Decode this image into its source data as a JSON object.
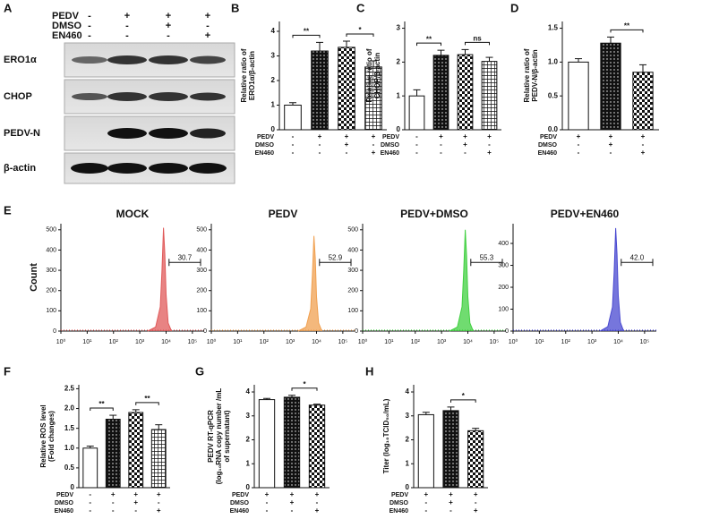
{
  "blot": {
    "panel": "A",
    "conditions": [
      {
        "name": "PEDV",
        "signs": [
          "-",
          "+",
          "+",
          "+"
        ]
      },
      {
        "name": "DMSO",
        "signs": [
          "-",
          "-",
          "+",
          "-"
        ]
      },
      {
        "name": "EN460",
        "signs": [
          "-",
          "-",
          "-",
          "+"
        ]
      }
    ],
    "bands": [
      "ERO1α",
      "CHOP",
      "PEDV-N",
      "β-actin"
    ]
  },
  "flow": {
    "panel": "E",
    "ylabel": "Count"
  },
  "chart_data": [
    {
      "type": "bar",
      "panel": "B",
      "ylabel": [
        "Relative ratio of",
        "ERO1α/β-actin"
      ],
      "values": [
        1.0,
        3.2,
        3.35,
        2.55
      ],
      "errors": [
        0.1,
        0.35,
        0.25,
        0.25
      ],
      "ylim": [
        0,
        4.4
      ],
      "yticks": [
        0,
        1,
        2,
        3,
        4
      ],
      "significance": [
        {
          "label": "**",
          "from": 0,
          "to": 1
        },
        {
          "label": "*",
          "from": 2,
          "to": 3
        }
      ],
      "conditions": [
        {
          "name": "PEDV",
          "signs": [
            "-",
            "+",
            "+",
            "+"
          ]
        },
        {
          "name": "DMSO",
          "signs": [
            "-",
            "-",
            "+",
            "-"
          ]
        },
        {
          "name": "EN460",
          "signs": [
            "-",
            "-",
            "-",
            "+"
          ]
        }
      ]
    },
    {
      "type": "bar",
      "panel": "C",
      "ylabel": [
        "Relative ratio of",
        "CHOP/β-actin"
      ],
      "values": [
        1.0,
        2.2,
        2.22,
        2.02
      ],
      "errors": [
        0.18,
        0.15,
        0.15,
        0.12
      ],
      "ylim": [
        0,
        3.2
      ],
      "yticks": [
        0,
        1,
        2,
        3
      ],
      "significance": [
        {
          "label": "**",
          "from": 0,
          "to": 1
        },
        {
          "label": "ns",
          "from": 2,
          "to": 3
        }
      ],
      "conditions": [
        {
          "name": "PEDV",
          "signs": [
            "-",
            "+",
            "+",
            "+"
          ]
        },
        {
          "name": "DMSO",
          "signs": [
            "-",
            "-",
            "+",
            "-"
          ]
        },
        {
          "name": "EN460",
          "signs": [
            "-",
            "-",
            "-",
            "+"
          ]
        }
      ]
    },
    {
      "type": "bar",
      "panel": "D",
      "ylabel": [
        "Relative ratio of",
        "PEDV-N/β-actin"
      ],
      "values": [
        1.0,
        1.28,
        0.85
      ],
      "errors": [
        0.05,
        0.09,
        0.11
      ],
      "ylim": [
        0,
        1.6
      ],
      "yticks": [
        {
          "value": 0,
          "label": "0.0"
        },
        0.5,
        {
          "value": 1,
          "label": "1.0"
        },
        1.5
      ],
      "significance": [
        {
          "label": "**",
          "from": 1,
          "to": 2
        }
      ],
      "conditions": [
        {
          "name": "PEDV",
          "signs": [
            "+",
            "+",
            "+"
          ]
        },
        {
          "name": "DMSO",
          "signs": [
            "-",
            "+",
            "-"
          ]
        },
        {
          "name": "EN460",
          "signs": [
            "-",
            "-",
            "+"
          ]
        }
      ]
    },
    {
      "type": "area",
      "title": "MOCK",
      "color": "#e05a5a",
      "xscale": "log",
      "x": [
        2000,
        4000,
        6000,
        7000,
        8000,
        9000,
        10000,
        12000,
        16000
      ],
      "values": [
        0,
        20,
        120,
        300,
        510,
        380,
        180,
        40,
        0
      ],
      "xlim": [
        1,
        280000
      ],
      "ylim": [
        0,
        530
      ],
      "xticks": [
        {
          "value": 1,
          "label": "10⁰"
        },
        {
          "value": 10,
          "label": "10¹"
        },
        {
          "value": 100,
          "label": "10²"
        },
        {
          "value": 1000,
          "label": "10³"
        },
        {
          "value": 10000,
          "label": "10⁴"
        },
        {
          "value": 100000,
          "label": "10⁵"
        }
      ],
      "yticks": [
        0,
        100,
        200,
        300,
        400,
        500
      ],
      "gate": 30.7
    },
    {
      "type": "area",
      "title": "PEDV",
      "color": "#f0a050",
      "xscale": "log",
      "x": [
        2000,
        4000,
        6000,
        7000,
        8000,
        9000,
        10000,
        12000,
        16000
      ],
      "values": [
        0,
        20,
        110,
        280,
        470,
        360,
        170,
        40,
        0
      ],
      "xlim": [
        1,
        280000
      ],
      "ylim": [
        0,
        530
      ],
      "xticks": [
        {
          "value": 1,
          "label": "10⁰"
        },
        {
          "value": 10,
          "label": "10¹"
        },
        {
          "value": 100,
          "label": "10²"
        },
        {
          "value": 1000,
          "label": "10³"
        },
        {
          "value": 10000,
          "label": "10⁴"
        },
        {
          "value": 100000,
          "label": "10⁵"
        }
      ],
      "yticks": [
        0,
        100,
        200,
        300,
        400,
        500
      ],
      "gate": 52.9
    },
    {
      "type": "area",
      "title": "PEDV+DMSO",
      "color": "#40d040",
      "xscale": "log",
      "x": [
        2000,
        4000,
        6000,
        7000,
        8000,
        9000,
        10000,
        12000,
        16000
      ],
      "values": [
        0,
        20,
        120,
        300,
        500,
        370,
        170,
        40,
        0
      ],
      "xlim": [
        1,
        280000
      ],
      "ylim": [
        0,
        530
      ],
      "xticks": [
        {
          "value": 1,
          "label": "10⁰"
        },
        {
          "value": 10,
          "label": "10¹"
        },
        {
          "value": 100,
          "label": "10²"
        },
        {
          "value": 1000,
          "label": "10³"
        },
        {
          "value": 10000,
          "label": "10⁴"
        },
        {
          "value": 100000,
          "label": "10⁵"
        }
      ],
      "yticks": [
        0,
        100,
        200,
        300,
        400,
        500
      ],
      "gate": 55.3
    },
    {
      "type": "area",
      "title": "PEDV+EN460",
      "color": "#4848d0",
      "xscale": "log",
      "x": [
        2000,
        4000,
        6000,
        7000,
        8000,
        9000,
        10000,
        12000,
        16000
      ],
      "values": [
        0,
        20,
        110,
        270,
        470,
        350,
        160,
        40,
        0
      ],
      "xlim": [
        1,
        280000
      ],
      "ylim": [
        0,
        490
      ],
      "xticks": [
        {
          "value": 1,
          "label": "10⁰"
        },
        {
          "value": 10,
          "label": "10¹"
        },
        {
          "value": 100,
          "label": "10²"
        },
        {
          "value": 1000,
          "label": "10³"
        },
        {
          "value": 10000,
          "label": "10⁴"
        },
        {
          "value": 100000,
          "label": "10⁵"
        }
      ],
      "yticks": [
        0,
        100,
        200,
        300,
        400
      ],
      "gate": {
        "value": 42.0,
        "label": "42.0"
      }
    },
    {
      "type": "bar",
      "panel": "F",
      "ylabel": [
        "Relative ROS level",
        "(Fold changes)"
      ],
      "values": [
        1.0,
        1.73,
        1.9,
        1.47
      ],
      "errors": [
        0.05,
        0.1,
        0.07,
        0.12
      ],
      "ylim": [
        0,
        2.6
      ],
      "yticks": [
        0,
        0.5,
        {
          "value": 1,
          "label": "1.0"
        },
        1.5,
        {
          "value": 2,
          "label": "2.0"
        },
        2.5
      ],
      "significance": [
        {
          "label": "**",
          "from": 0,
          "to": 1
        },
        {
          "label": "**",
          "from": 2,
          "to": 3
        }
      ],
      "conditions": [
        {
          "name": "PEDV",
          "signs": [
            "-",
            "+",
            "+",
            "+"
          ]
        },
        {
          "name": "DMSO",
          "signs": [
            "-",
            "-",
            "+",
            "-"
          ]
        },
        {
          "name": "EN460",
          "signs": [
            "-",
            "-",
            "-",
            "+"
          ]
        }
      ]
    },
    {
      "type": "bar",
      "panel": "G",
      "ylabel": [
        "PEDV RT-qPCR",
        "(log₁₀RNA copy number /mL",
        "of supernatant)"
      ],
      "values": [
        3.68,
        3.78,
        3.45
      ],
      "errors": [
        0.05,
        0.08,
        0.04
      ],
      "ylim": [
        0,
        4.3
      ],
      "yticks": [
        0,
        1,
        2,
        3,
        4
      ],
      "significance": [
        {
          "label": "*",
          "from": 1,
          "to": 2
        }
      ],
      "conditions": [
        {
          "name": "PEDV",
          "signs": [
            "+",
            "+",
            "+"
          ]
        },
        {
          "name": "DMSO",
          "signs": [
            "-",
            "+",
            "-"
          ]
        },
        {
          "name": "EN460",
          "signs": [
            "-",
            "-",
            "+"
          ]
        }
      ]
    },
    {
      "type": "bar",
      "panel": "H",
      "ylabel": [
        "Titer (log₁₀TCID₅₀/mL)"
      ],
      "values": [
        3.05,
        3.22,
        2.38
      ],
      "errors": [
        0.1,
        0.15,
        0.1
      ],
      "ylim": [
        0,
        4.3
      ],
      "yticks": [
        0,
        1,
        2,
        3,
        4
      ],
      "significance": [
        {
          "label": "*",
          "from": 1,
          "to": 2
        }
      ],
      "conditions": [
        {
          "name": "PEDV",
          "signs": [
            "+",
            "+",
            "+"
          ]
        },
        {
          "name": "DMSO",
          "signs": [
            "-",
            "+",
            "-"
          ]
        },
        {
          "name": "EN460",
          "signs": [
            "-",
            "-",
            "+"
          ]
        }
      ]
    }
  ]
}
